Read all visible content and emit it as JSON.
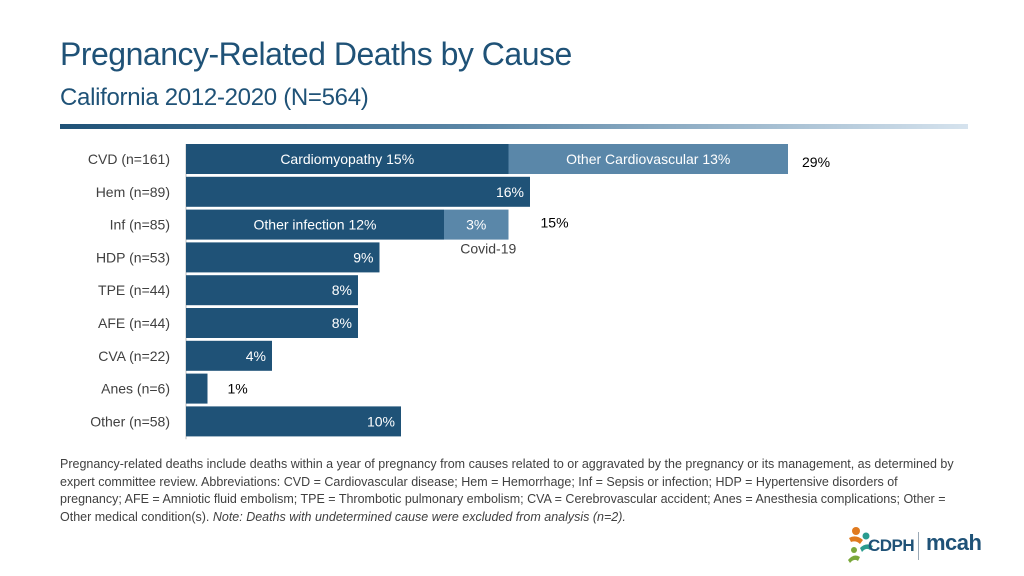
{
  "header": {
    "title": "Pregnancy-Related Deaths by Cause",
    "subtitle": "California 2012-2020 (N=564)"
  },
  "chart_data": {
    "type": "bar",
    "orientation": "horizontal",
    "stacked": true,
    "unit": "%",
    "xlim": [
      0,
      30
    ],
    "categories": [
      "CVD (n=161)",
      "Hem (n=89)",
      "Inf (n=85)",
      "HDP (n=53)",
      "TPE (n=44)",
      "AFE (n=44)",
      "CVA (n=22)",
      "Anes (n=6)",
      "Other (n=58)"
    ],
    "bars": [
      {
        "category": "CVD (n=161)",
        "total_label": "29%",
        "segments": [
          {
            "name": "Cardiomyopathy",
            "value": 15,
            "label": "Cardiomyopathy 15%"
          },
          {
            "name": "Other Cardiovascular",
            "value": 13,
            "label": "Other Cardiovascular 13%"
          }
        ]
      },
      {
        "category": "Hem (n=89)",
        "segments": [
          {
            "name": "Hemorrhage",
            "value": 16,
            "label": "16%"
          }
        ]
      },
      {
        "category": "Inf (n=85)",
        "total_label": "15%",
        "segments": [
          {
            "name": "Other infection",
            "value": 12,
            "label": "Other infection 12%"
          },
          {
            "name": "Covid-19",
            "value": 3,
            "label": "3%"
          }
        ]
      },
      {
        "category": "HDP (n=53)",
        "segments": [
          {
            "name": "HDP",
            "value": 9,
            "label": "9%"
          }
        ]
      },
      {
        "category": "TPE (n=44)",
        "segments": [
          {
            "name": "TPE",
            "value": 8,
            "label": "8%"
          }
        ]
      },
      {
        "category": "AFE (n=44)",
        "segments": [
          {
            "name": "AFE",
            "value": 8,
            "label": "8%"
          }
        ]
      },
      {
        "category": "CVA (n=22)",
        "segments": [
          {
            "name": "CVA",
            "value": 4,
            "label": "4%"
          }
        ]
      },
      {
        "category": "Anes (n=6)",
        "segments": [
          {
            "name": "Anes",
            "value": 1,
            "label": "1%"
          }
        ]
      },
      {
        "category": "Other (n=58)",
        "segments": [
          {
            "name": "Other",
            "value": 10,
            "label": "10%"
          }
        ]
      }
    ],
    "annotations": [
      "Covid-19"
    ],
    "colors": {
      "primary": "#1f5277",
      "secondary": "#5a87a9",
      "label_inside": "#ffffff",
      "label_outside": "#000000",
      "axis_label": "#404040"
    }
  },
  "footnote": {
    "text": "Pregnancy-related deaths include deaths within a year of pregnancy from causes related to or aggravated by the pregnancy or its management, as determined by expert committee review. Abbreviations: CVD = Cardiovascular disease; Hem = Hemorrhage; Inf = Sepsis or infection; HDP = Hypertensive disorders of pregnancy; AFE = Amniotic fluid embolism; TPE = Thrombotic pulmonary embolism; CVA = Cerebrovascular accident; Anes = Anesthesia complications; Other = Other medical condition(s). ",
    "note": "Note: Deaths with undetermined cause were excluded from analysis (n=2)."
  },
  "logo": {
    "cdph": "CDPH",
    "mcah": "mcah"
  }
}
